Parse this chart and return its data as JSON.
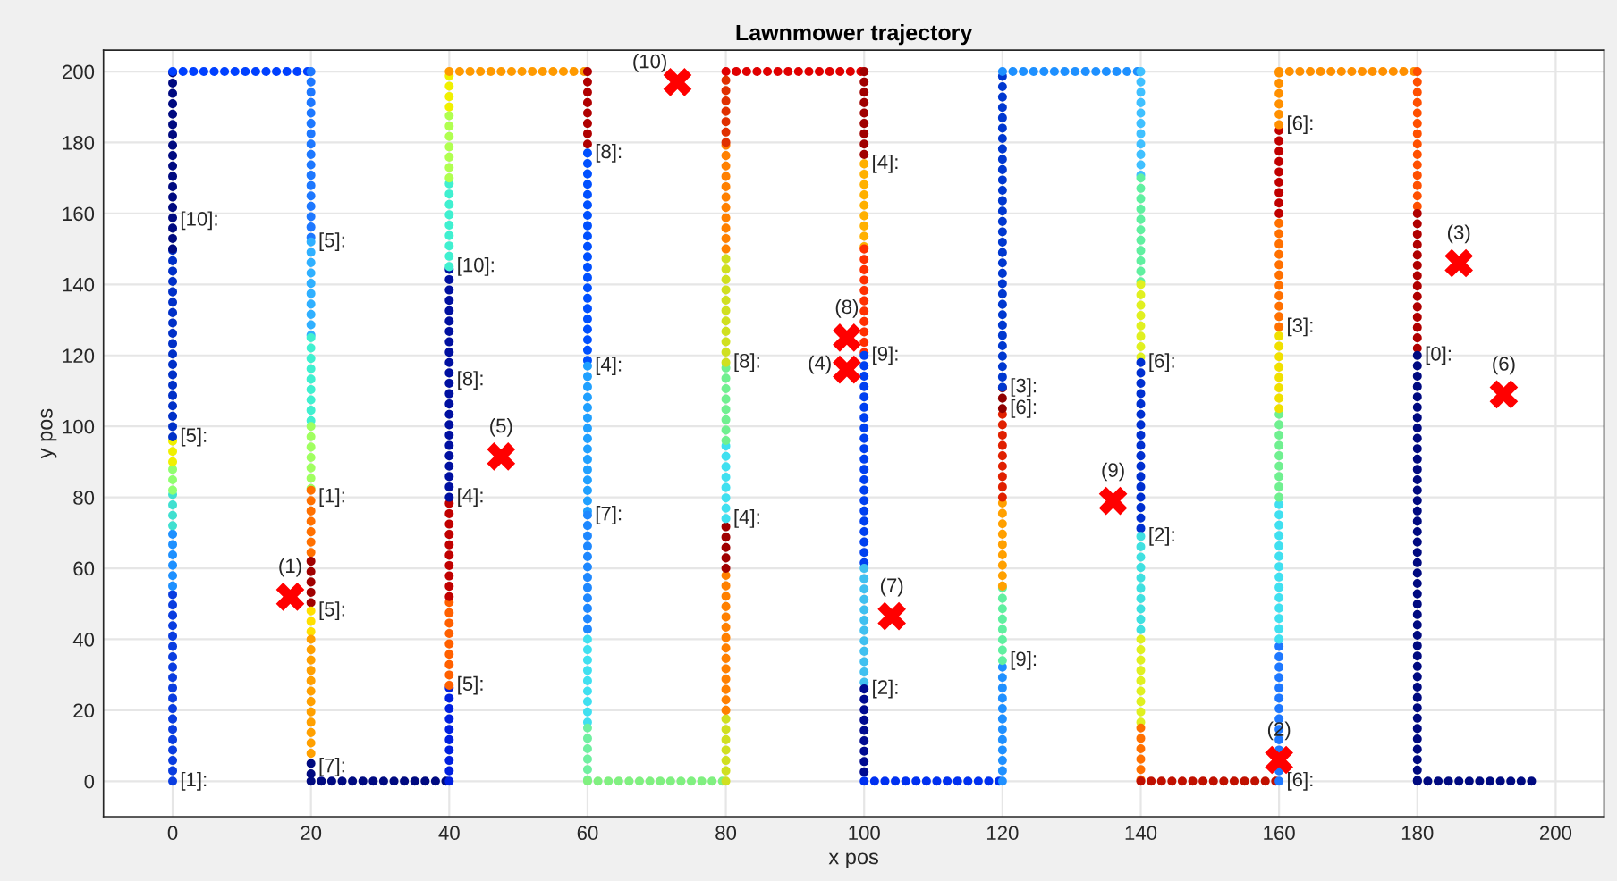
{
  "chart_data": {
    "type": "line",
    "title": "Lawnmower trajectory",
    "xlabel": "x pos",
    "ylabel": "y pos",
    "xlim": [
      -10,
      207
    ],
    "ylim": [
      -10,
      206
    ],
    "xticks": [
      0,
      20,
      40,
      60,
      80,
      100,
      120,
      140,
      160,
      180,
      200
    ],
    "yticks": [
      0,
      20,
      40,
      60,
      80,
      100,
      120,
      140,
      160,
      180,
      200
    ],
    "grid": true,
    "line_style": "dotted",
    "series": [
      {
        "x": [
          0,
          0
        ],
        "values": [
          0,
          55
        ],
        "color": "#0a3de0"
      },
      {
        "x": [
          0,
          0
        ],
        "values": [
          55,
          72
        ],
        "color": "#1e90ff"
      },
      {
        "x": [
          0,
          0
        ],
        "values": [
          72,
          82
        ],
        "color": "#40e0d0"
      },
      {
        "x": [
          0,
          0
        ],
        "values": [
          82,
          90
        ],
        "color": "#90ff70"
      },
      {
        "x": [
          0,
          0
        ],
        "values": [
          90,
          97
        ],
        "color": "#f0f000"
      },
      {
        "x": [
          0,
          0
        ],
        "values": [
          97,
          150
        ],
        "color": "#0030c8"
      },
      {
        "x": [
          0,
          0
        ],
        "values": [
          150,
          200
        ],
        "color": "#000a80"
      },
      {
        "x": [
          0,
          20
        ],
        "values": [
          200,
          200
        ],
        "color": "#0040ff"
      },
      {
        "x": [
          20,
          20
        ],
        "values": [
          200,
          152
        ],
        "color": "#1e78ff"
      },
      {
        "x": [
          20,
          20
        ],
        "values": [
          152,
          125
        ],
        "color": "#30b0ff"
      },
      {
        "x": [
          20,
          20
        ],
        "values": [
          125,
          100
        ],
        "color": "#40f0d0"
      },
      {
        "x": [
          20,
          20
        ],
        "values": [
          100,
          82
        ],
        "color": "#a0ff60"
      },
      {
        "x": [
          20,
          20
        ],
        "values": [
          82,
          62
        ],
        "color": "#ff7000"
      },
      {
        "x": [
          20,
          20
        ],
        "values": [
          62,
          48
        ],
        "color": "#a00000"
      },
      {
        "x": [
          20,
          20
        ],
        "values": [
          48,
          40
        ],
        "color": "#ffe000"
      },
      {
        "x": [
          20,
          20
        ],
        "values": [
          40,
          5
        ],
        "color": "#ffa000"
      },
      {
        "x": [
          20,
          20
        ],
        "values": [
          5,
          0
        ],
        "color": "#000a80"
      },
      {
        "x": [
          20,
          40
        ],
        "values": [
          0,
          0
        ],
        "color": "#000a80"
      },
      {
        "x": [
          40,
          40
        ],
        "values": [
          0,
          27
        ],
        "color": "#0020e0"
      },
      {
        "x": [
          40,
          40
        ],
        "values": [
          27,
          52
        ],
        "color": "#ff6000"
      },
      {
        "x": [
          40,
          40
        ],
        "values": [
          52,
          80
        ],
        "color": "#c00000"
      },
      {
        "x": [
          40,
          40
        ],
        "values": [
          80,
          145
        ],
        "color": "#0010a0"
      },
      {
        "x": [
          40,
          40
        ],
        "values": [
          145,
          170
        ],
        "color": "#40f0d0"
      },
      {
        "x": [
          40,
          40
        ],
        "values": [
          170,
          190
        ],
        "color": "#b0ff50"
      },
      {
        "x": [
          40,
          40
        ],
        "values": [
          190,
          200
        ],
        "color": "#f0f000"
      },
      {
        "x": [
          40,
          60
        ],
        "values": [
          200,
          200
        ],
        "color": "#ff9a00"
      },
      {
        "x": [
          60,
          60
        ],
        "values": [
          200,
          177
        ],
        "color": "#b00000"
      },
      {
        "x": [
          60,
          60
        ],
        "values": [
          177,
          117
        ],
        "color": "#0050ff"
      },
      {
        "x": [
          60,
          60
        ],
        "values": [
          117,
          75
        ],
        "color": "#20a0ff"
      },
      {
        "x": [
          60,
          60
        ],
        "values": [
          75,
          40
        ],
        "color": "#1e88ff"
      },
      {
        "x": [
          60,
          60
        ],
        "values": [
          40,
          15
        ],
        "color": "#40e0f0"
      },
      {
        "x": [
          60,
          60
        ],
        "values": [
          15,
          0
        ],
        "color": "#70f0a0"
      },
      {
        "x": [
          60,
          80
        ],
        "values": [
          0,
          0
        ],
        "color": "#80f080"
      },
      {
        "x": [
          80,
          80
        ],
        "values": [
          0,
          20
        ],
        "color": "#d0e020"
      },
      {
        "x": [
          80,
          80
        ],
        "values": [
          20,
          60
        ],
        "color": "#ff8000"
      },
      {
        "x": [
          80,
          80
        ],
        "values": [
          60,
          74
        ],
        "color": "#a00000"
      },
      {
        "x": [
          80,
          80
        ],
        "values": [
          74,
          96
        ],
        "color": "#40e0f0"
      },
      {
        "x": [
          80,
          80
        ],
        "values": [
          96,
          118
        ],
        "color": "#70f090"
      },
      {
        "x": [
          80,
          80
        ],
        "values": [
          118,
          150
        ],
        "color": "#d0e020"
      },
      {
        "x": [
          80,
          80
        ],
        "values": [
          150,
          180
        ],
        "color": "#ff8000"
      },
      {
        "x": [
          80,
          80
        ],
        "values": [
          180,
          200
        ],
        "color": "#e03000"
      },
      {
        "x": [
          80,
          100
        ],
        "values": [
          200,
          200
        ],
        "color": "#e00000"
      },
      {
        "x": [
          100,
          100
        ],
        "values": [
          200,
          174
        ],
        "color": "#a00000"
      },
      {
        "x": [
          100,
          100
        ],
        "values": [
          174,
          150
        ],
        "color": "#ffb000"
      },
      {
        "x": [
          100,
          100
        ],
        "values": [
          150,
          120
        ],
        "color": "#ff3000"
      },
      {
        "x": [
          100,
          100
        ],
        "values": [
          120,
          60
        ],
        "color": "#0040f0"
      },
      {
        "x": [
          100,
          100
        ],
        "values": [
          60,
          26
        ],
        "color": "#40c0f0"
      },
      {
        "x": [
          100,
          100
        ],
        "values": [
          26,
          0
        ],
        "color": "#000a90"
      },
      {
        "x": [
          100,
          120
        ],
        "values": [
          0,
          0
        ],
        "color": "#0030f0"
      },
      {
        "x": [
          120,
          120
        ],
        "values": [
          0,
          34
        ],
        "color": "#2090ff"
      },
      {
        "x": [
          120,
          120
        ],
        "values": [
          34,
          55
        ],
        "color": "#60f0a0"
      },
      {
        "x": [
          120,
          120
        ],
        "values": [
          55,
          80
        ],
        "color": "#ffa000"
      },
      {
        "x": [
          120,
          120
        ],
        "values": [
          80,
          105
        ],
        "color": "#e02000"
      },
      {
        "x": [
          120,
          120
        ],
        "values": [
          105,
          111
        ],
        "color": "#900000"
      },
      {
        "x": [
          120,
          120
        ],
        "values": [
          111,
          200
        ],
        "color": "#0038d0"
      },
      {
        "x": [
          120,
          140
        ],
        "values": [
          200,
          200
        ],
        "color": "#1e90ff"
      },
      {
        "x": [
          140,
          140
        ],
        "values": [
          200,
          170
        ],
        "color": "#40c0ff"
      },
      {
        "x": [
          140,
          140
        ],
        "values": [
          170,
          140
        ],
        "color": "#60f0a0"
      },
      {
        "x": [
          140,
          140
        ],
        "values": [
          140,
          118
        ],
        "color": "#e0f020"
      },
      {
        "x": [
          140,
          140
        ],
        "values": [
          118,
          69
        ],
        "color": "#0030d0"
      },
      {
        "x": [
          140,
          140
        ],
        "values": [
          69,
          40
        ],
        "color": "#40e0e0"
      },
      {
        "x": [
          140,
          140
        ],
        "values": [
          40,
          15
        ],
        "color": "#e0f020"
      },
      {
        "x": [
          140,
          140
        ],
        "values": [
          15,
          0
        ],
        "color": "#ff7000"
      },
      {
        "x": [
          140,
          160
        ],
        "values": [
          0,
          0
        ],
        "color": "#c01000"
      },
      {
        "x": [
          160,
          160
        ],
        "values": [
          0,
          40
        ],
        "color": "#1e78ff"
      },
      {
        "x": [
          160,
          160
        ],
        "values": [
          40,
          80
        ],
        "color": "#40e0f0"
      },
      {
        "x": [
          160,
          160
        ],
        "values": [
          80,
          105
        ],
        "color": "#70f090"
      },
      {
        "x": [
          160,
          160
        ],
        "values": [
          105,
          128
        ],
        "color": "#f0e000"
      },
      {
        "x": [
          160,
          160
        ],
        "values": [
          128,
          160
        ],
        "color": "#ff7000"
      },
      {
        "x": [
          160,
          160
        ],
        "values": [
          160,
          185
        ],
        "color": "#c00000"
      },
      {
        "x": [
          160,
          160
        ],
        "values": [
          185,
          200
        ],
        "color": "#ff9000"
      },
      {
        "x": [
          160,
          180
        ],
        "values": [
          200,
          200
        ],
        "color": "#ff9000"
      },
      {
        "x": [
          180,
          180
        ],
        "values": [
          200,
          160
        ],
        "color": "#ff5000"
      },
      {
        "x": [
          180,
          180
        ],
        "values": [
          160,
          120
        ],
        "color": "#b00000"
      },
      {
        "x": [
          180,
          180
        ],
        "values": [
          120,
          0
        ],
        "color": "#000a80"
      },
      {
        "x": [
          180,
          198
        ],
        "values": [
          0,
          0
        ],
        "color": "#000a80"
      },
      {
        "type": "scatter",
        "marker": "cross",
        "color": "#ff0000",
        "x": [
          17,
          160,
          186,
          97.5,
          47.5,
          192.5,
          104,
          97.5,
          136,
          73
        ],
        "values": [
          52,
          6,
          146,
          116,
          91.5,
          109,
          46.5,
          125,
          79,
          197
        ]
      }
    ],
    "annotations": [
      {
        "text": "(1)",
        "x": 17,
        "y": 52
      },
      {
        "text": "(2)",
        "x": 160,
        "y": 6
      },
      {
        "text": "(3)",
        "x": 186,
        "y": 146
      },
      {
        "text": "(4)",
        "x": 97.5,
        "y": 116
      },
      {
        "text": "(5)",
        "x": 47.5,
        "y": 91.5
      },
      {
        "text": "(6)",
        "x": 192.5,
        "y": 109
      },
      {
        "text": "(7)",
        "x": 104,
        "y": 46.5
      },
      {
        "text": "(8)",
        "x": 97.5,
        "y": 125
      },
      {
        "text": "(9)",
        "x": 136,
        "y": 79
      },
      {
        "text": "(10)",
        "x": 73,
        "y": 197
      },
      {
        "text": "[1]:",
        "x": 0,
        "y": 0
      },
      {
        "text": "[5]:",
        "x": 0,
        "y": 97
      },
      {
        "text": "[10]:",
        "x": 0,
        "y": 158
      },
      {
        "text": "[7]:",
        "x": 20,
        "y": 4
      },
      {
        "text": "[5]:",
        "x": 20,
        "y": 48
      },
      {
        "text": "[1]:",
        "x": 20,
        "y": 80
      },
      {
        "text": "[5]:",
        "x": 20,
        "y": 152
      },
      {
        "text": "[5]:",
        "x": 40,
        "y": 27
      },
      {
        "text": "[4]:",
        "x": 40,
        "y": 80
      },
      {
        "text": "[8]:",
        "x": 40,
        "y": 113
      },
      {
        "text": "[10]:",
        "x": 40,
        "y": 145
      },
      {
        "text": "[7]:",
        "x": 60,
        "y": 75
      },
      {
        "text": "[4]:",
        "x": 60,
        "y": 117
      },
      {
        "text": "[8]:",
        "x": 60,
        "y": 177
      },
      {
        "text": "[4]:",
        "x": 80,
        "y": 74
      },
      {
        "text": "[8]:",
        "x": 80,
        "y": 118
      },
      {
        "text": "[2]:",
        "x": 100,
        "y": 26
      },
      {
        "text": "[9]:",
        "x": 100,
        "y": 120
      },
      {
        "text": "[4]:",
        "x": 100,
        "y": 174
      },
      {
        "text": "[9]:",
        "x": 120,
        "y": 34
      },
      {
        "text": "[6]:",
        "x": 120,
        "y": 105
      },
      {
        "text": "[3]:",
        "x": 120,
        "y": 111
      },
      {
        "text": "[2]:",
        "x": 140,
        "y": 69
      },
      {
        "text": "[6]:",
        "x": 140,
        "y": 118
      },
      {
        "text": "[6]:",
        "x": 160,
        "y": 0
      },
      {
        "text": "[3]:",
        "x": 160,
        "y": 128
      },
      {
        "text": "[6]:",
        "x": 160,
        "y": 185
      },
      {
        "text": "[0]:",
        "x": 180,
        "y": 120
      }
    ]
  }
}
